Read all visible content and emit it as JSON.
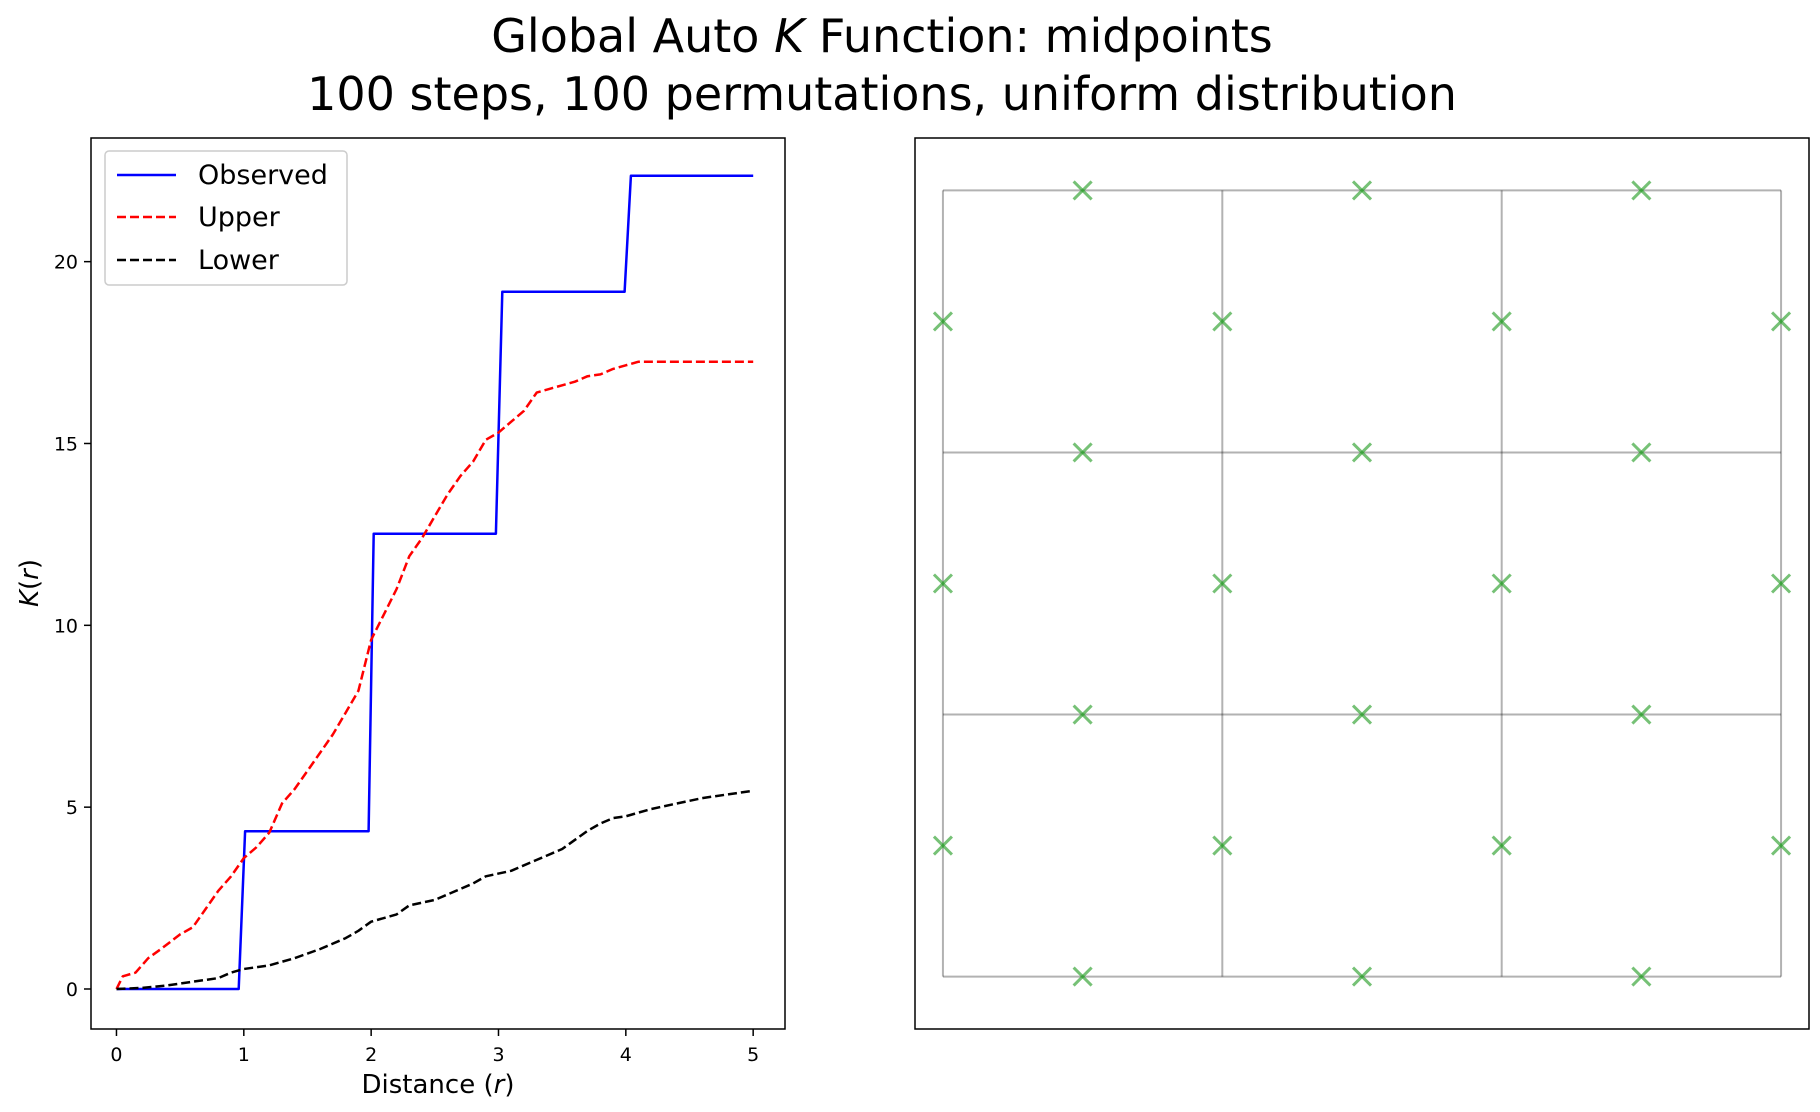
{
  "chart_data": [
    {
      "type": "line",
      "title_line1_prefix": "Global Auto ",
      "title_line1_italic": "K",
      "title_line1_suffix": " Function: midpoints",
      "title_line2": "100 steps, 100 permutations, uniform distribution",
      "xlabel_prefix": "Distance (",
      "xlabel_italic": "r",
      "xlabel_suffix": ")",
      "ylabel_italic_k": "K",
      "ylabel_open": "(",
      "ylabel_italic_r": "r",
      "ylabel_close": ")",
      "xlim": [
        -0.2,
        5.25
      ],
      "ylim": [
        -1.1,
        23.4
      ],
      "xticks": [
        0,
        1,
        2,
        3,
        4,
        5
      ],
      "yticks": [
        0,
        5,
        10,
        15,
        20
      ],
      "legend_position": "top-left",
      "series": [
        {
          "name": "Observed",
          "color": "#0000ff",
          "style": "solid",
          "points": [
            [
              0,
              0
            ],
            [
              0.96,
              0
            ],
            [
              1.01,
              4.34
            ],
            [
              1.98,
              4.34
            ],
            [
              2.02,
              12.52
            ],
            [
              2.98,
              12.52
            ],
            [
              3.03,
              19.17
            ],
            [
              3.99,
              19.17
            ],
            [
              4.04,
              22.36
            ],
            [
              5,
              22.36
            ]
          ]
        },
        {
          "name": "Upper",
          "color": "#ff0000",
          "style": "dashed",
          "points": [
            [
              0,
              0
            ],
            [
              0.05,
              0.35
            ],
            [
              0.15,
              0.45
            ],
            [
              0.25,
              0.85
            ],
            [
              0.35,
              1.1
            ],
            [
              0.5,
              1.5
            ],
            [
              0.6,
              1.7
            ],
            [
              0.7,
              2.2
            ],
            [
              0.8,
              2.7
            ],
            [
              0.9,
              3.1
            ],
            [
              1.0,
              3.6
            ],
            [
              1.1,
              3.9
            ],
            [
              1.2,
              4.3
            ],
            [
              1.3,
              5.1
            ],
            [
              1.4,
              5.5
            ],
            [
              1.5,
              6.0
            ],
            [
              1.6,
              6.5
            ],
            [
              1.7,
              7.0
            ],
            [
              1.8,
              7.6
            ],
            [
              1.9,
              8.2
            ],
            [
              2.0,
              9.6
            ],
            [
              2.1,
              10.3
            ],
            [
              2.2,
              11.0
            ],
            [
              2.3,
              11.9
            ],
            [
              2.4,
              12.4
            ],
            [
              2.5,
              13.0
            ],
            [
              2.6,
              13.6
            ],
            [
              2.7,
              14.1
            ],
            [
              2.8,
              14.5
            ],
            [
              2.9,
              15.1
            ],
            [
              3.0,
              15.3
            ],
            [
              3.1,
              15.6
            ],
            [
              3.2,
              15.9
            ],
            [
              3.3,
              16.4
            ],
            [
              3.4,
              16.5
            ],
            [
              3.5,
              16.6
            ],
            [
              3.6,
              16.7
            ],
            [
              3.7,
              16.85
            ],
            [
              3.8,
              16.9
            ],
            [
              3.9,
              17.05
            ],
            [
              4.0,
              17.15
            ],
            [
              4.1,
              17.25
            ],
            [
              4.3,
              17.25
            ],
            [
              4.6,
              17.25
            ],
            [
              5,
              17.25
            ]
          ]
        },
        {
          "name": "Lower",
          "color": "#000000",
          "style": "dashed",
          "points": [
            [
              0,
              0
            ],
            [
              0.2,
              0.03
            ],
            [
              0.4,
              0.1
            ],
            [
              0.6,
              0.2
            ],
            [
              0.8,
              0.3
            ],
            [
              0.9,
              0.45
            ],
            [
              1.0,
              0.55
            ],
            [
              1.2,
              0.65
            ],
            [
              1.4,
              0.85
            ],
            [
              1.6,
              1.1
            ],
            [
              1.8,
              1.4
            ],
            [
              1.9,
              1.6
            ],
            [
              2.0,
              1.85
            ],
            [
              2.2,
              2.05
            ],
            [
              2.3,
              2.3
            ],
            [
              2.5,
              2.45
            ],
            [
              2.7,
              2.75
            ],
            [
              2.8,
              2.9
            ],
            [
              2.9,
              3.1
            ],
            [
              3.1,
              3.25
            ],
            [
              3.3,
              3.55
            ],
            [
              3.5,
              3.85
            ],
            [
              3.7,
              4.35
            ],
            [
              3.8,
              4.55
            ],
            [
              3.9,
              4.7
            ],
            [
              4.0,
              4.75
            ],
            [
              4.1,
              4.85
            ],
            [
              4.2,
              4.95
            ],
            [
              4.4,
              5.1
            ],
            [
              4.6,
              5.25
            ],
            [
              4.8,
              5.35
            ],
            [
              5,
              5.45
            ]
          ]
        }
      ]
    },
    {
      "type": "scatter",
      "marker": "x",
      "marker_color": "#2ca02c",
      "xlim": [
        -0.2,
        6.2
      ],
      "ylim": [
        -0.4,
        6.4
      ],
      "grid_lines": [
        [
          [
            0,
            0
          ],
          [
            6,
            0
          ]
        ],
        [
          [
            0,
            2
          ],
          [
            6,
            2
          ]
        ],
        [
          [
            0,
            4
          ],
          [
            6,
            4
          ]
        ],
        [
          [
            0,
            6
          ],
          [
            6,
            6
          ]
        ],
        [
          [
            0,
            0
          ],
          [
            0,
            6
          ]
        ],
        [
          [
            2,
            0
          ],
          [
            2,
            6
          ]
        ],
        [
          [
            4,
            0
          ],
          [
            4,
            6
          ]
        ],
        [
          [
            6,
            0
          ],
          [
            6,
            6
          ]
        ]
      ],
      "points": [
        [
          1,
          6
        ],
        [
          3,
          6
        ],
        [
          5,
          6
        ],
        [
          0,
          5
        ],
        [
          2,
          5
        ],
        [
          4,
          5
        ],
        [
          6,
          5
        ],
        [
          1,
          4
        ],
        [
          3,
          4
        ],
        [
          5,
          4
        ],
        [
          0,
          3
        ],
        [
          2,
          3
        ],
        [
          4,
          3
        ],
        [
          6,
          3
        ],
        [
          1,
          2
        ],
        [
          3,
          2
        ],
        [
          5,
          2
        ],
        [
          0,
          1
        ],
        [
          2,
          1
        ],
        [
          4,
          1
        ],
        [
          6,
          1
        ],
        [
          1,
          0
        ],
        [
          3,
          0
        ],
        [
          5,
          0
        ]
      ]
    }
  ]
}
